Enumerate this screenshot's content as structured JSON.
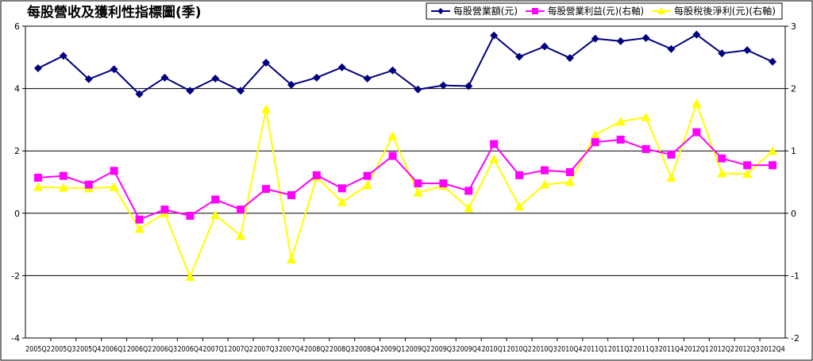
{
  "chart_data": {
    "type": "line",
    "title": "每股營收及獲利性指標圖(季)",
    "categories": [
      "2005Q2",
      "2005Q3",
      "2005Q4",
      "2006Q1",
      "2006Q2",
      "2006Q3",
      "2006Q4",
      "2007Q1",
      "2007Q2",
      "2007Q3",
      "2007Q4",
      "2008Q2",
      "2008Q3",
      "2008Q4",
      "2009Q1",
      "2009Q2",
      "2009Q3",
      "2009Q4",
      "2010Q1",
      "2010Q2",
      "2010Q3",
      "2010Q4",
      "2011Q1",
      "2011Q2",
      "2011Q3",
      "2011Q4",
      "2012Q1",
      "2012Q2",
      "2012Q3",
      "2012Q4"
    ],
    "y_left": {
      "min": -4,
      "max": 6,
      "ticks": [
        -4,
        -2,
        0,
        2,
        4,
        6
      ]
    },
    "y_right": {
      "min": -2,
      "max": 3,
      "ticks": [
        -2,
        -1,
        0,
        1,
        2,
        3
      ]
    },
    "legend_position": "top-right",
    "grid": "horizontal",
    "series": [
      {
        "name": "每股營業額(元)",
        "axis": "left",
        "color": "#000080",
        "marker": "diamond",
        "values": [
          4.65,
          5.05,
          4.3,
          4.62,
          3.82,
          4.35,
          3.93,
          4.32,
          3.93,
          4.83,
          4.12,
          4.35,
          4.68,
          4.32,
          4.58,
          3.97,
          4.1,
          4.08,
          5.7,
          5.02,
          5.35,
          4.98,
          5.6,
          5.52,
          5.62,
          5.27,
          5.73,
          5.13,
          5.23,
          4.86
        ]
      },
      {
        "name": "每股營業利益(元)(右軸)",
        "axis": "right",
        "color": "#ff00ff",
        "marker": "square",
        "values": [
          0.57,
          0.6,
          0.46,
          0.68,
          -0.1,
          0.06,
          -0.04,
          0.22,
          0.06,
          0.39,
          0.29,
          0.61,
          0.4,
          0.6,
          0.92,
          0.48,
          0.48,
          0.36,
          1.11,
          0.61,
          0.69,
          0.66,
          1.14,
          1.18,
          1.03,
          0.94,
          1.3,
          0.88,
          0.77,
          0.77
        ]
      },
      {
        "name": "每股稅後淨利(元)(右軸)",
        "axis": "right",
        "color": "#ffff00",
        "marker": "triangle",
        "values": [
          0.42,
          0.41,
          0.4,
          0.42,
          -0.25,
          0.0,
          -1.02,
          -0.03,
          -0.36,
          1.67,
          -0.74,
          0.58,
          0.18,
          0.45,
          1.24,
          0.33,
          0.44,
          0.08,
          0.87,
          0.11,
          0.46,
          0.5,
          1.26,
          1.47,
          1.54,
          0.57,
          1.76,
          0.64,
          0.63,
          1.0
        ]
      }
    ]
  }
}
